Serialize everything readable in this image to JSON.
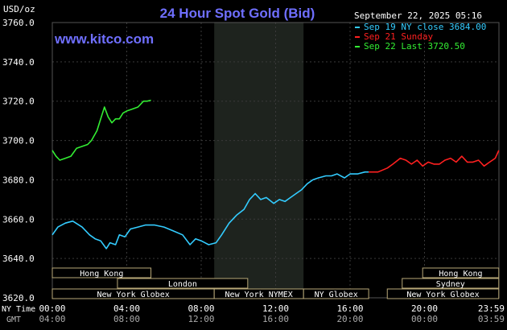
{
  "title": "24 Hour Spot Gold (Bid)",
  "unit_label": "USD/oz",
  "watermark": "www.kitco.com",
  "timestamp": "September 22, 2025 05:16",
  "legend": [
    {
      "label": "Sep 19 NY close 3684.00",
      "color": "#33ccff"
    },
    {
      "label": "Sep 21 Sunday",
      "color": "#ff2020"
    },
    {
      "label": "Sep 22 Last 3720.50",
      "color": "#33ee33"
    }
  ],
  "axis_labels": {
    "ny_time": "NY Time",
    "gmt": "GMT"
  },
  "x_ticks_ny": [
    "00:00",
    "04:00",
    "08:00",
    "12:00",
    "16:00",
    "20:00",
    "23:59"
  ],
  "x_ticks_gmt": [
    "04:00",
    "08:00",
    "12:00",
    "16:00",
    "20:00",
    "00:00",
    "03:59"
  ],
  "sessions_left": [
    {
      "label": "Hong Kong",
      "start_h": 0,
      "end_h": 5.3
    },
    {
      "label": "London",
      "start_h": 3.5,
      "end_h": 10.5
    },
    {
      "label": "New York Globex",
      "start_h": 0,
      "end_h": 8.7
    },
    {
      "label": "New York NYMEX",
      "start_h": 8.7,
      "end_h": 13.5
    },
    {
      "label": "NY Globex",
      "start_h": 13.5,
      "end_h": 17
    }
  ],
  "sessions_right": [
    {
      "label": "Hong Kong",
      "start_h": 19.9,
      "end_h": 23.99
    },
    {
      "label": "Sydney",
      "start_h": 18.8,
      "end_h": 23.99
    },
    {
      "label": "New York Globex",
      "start_h": 18,
      "end_h": 23.99
    }
  ],
  "chart_data": {
    "type": "line",
    "title": "24 Hour Spot Gold (Bid)",
    "ylabel": "USD/oz",
    "ylim": [
      3620,
      3760
    ],
    "y_ticks": [
      3620,
      3640,
      3660,
      3680,
      3700,
      3720,
      3740,
      3760
    ],
    "xlim_hours": [
      0,
      24
    ],
    "shaded_region_hours": [
      8.7,
      13.5
    ],
    "grid": true,
    "series": [
      {
        "name": "Sep 19 NY close 3684.00",
        "color": "#33ccff",
        "x_hours": [
          0,
          0.3,
          0.7,
          1.1,
          1.6,
          2.0,
          2.3,
          2.6,
          2.9,
          3.1,
          3.4,
          3.6,
          3.9,
          4.2,
          4.6,
          5.0,
          5.5,
          6.0,
          6.5,
          7.0,
          7.4,
          7.7,
          8.0,
          8.4,
          8.8,
          9.1,
          9.5,
          9.9,
          10.3,
          10.6,
          10.9,
          11.2,
          11.5,
          11.9,
          12.2,
          12.5,
          12.8,
          13.1,
          13.4,
          13.7,
          14.0,
          14.3,
          14.7,
          15.0,
          15.3,
          15.7,
          16.0,
          16.4,
          16.8,
          17.0
        ],
        "values": [
          3652,
          3656,
          3658,
          3659,
          3656,
          3652,
          3650,
          3649,
          3645,
          3648,
          3647,
          3652,
          3651,
          3655,
          3656,
          3657,
          3657,
          3656,
          3654,
          3652,
          3647,
          3650,
          3649,
          3647,
          3648,
          3652,
          3658,
          3662,
          3665,
          3670,
          3673,
          3670,
          3671,
          3668,
          3670,
          3669,
          3671,
          3673,
          3675,
          3678,
          3680,
          3681,
          3682,
          3682,
          3683,
          3681,
          3683,
          3683,
          3684,
          3684
        ]
      },
      {
        "name": "Sep 21 Sunday",
        "color": "#ff2020",
        "x_hours": [
          17.0,
          17.5,
          18.0,
          18.3,
          18.7,
          19.0,
          19.3,
          19.6,
          19.9,
          20.2,
          20.5,
          20.8,
          21.1,
          21.4,
          21.7,
          22.0,
          22.3,
          22.6,
          22.9,
          23.2,
          23.5,
          23.8,
          23.99
        ],
        "values": [
          3684,
          3684,
          3686,
          3688,
          3691,
          3690,
          3688,
          3690,
          3687,
          3689,
          3688,
          3688,
          3690,
          3691,
          3689,
          3692,
          3689,
          3689,
          3690,
          3687,
          3689,
          3691,
          3695
        ]
      },
      {
        "name": "Sep 22 Last 3720.50",
        "color": "#33ee33",
        "x_hours": [
          0,
          0.2,
          0.4,
          0.7,
          1.0,
          1.3,
          1.6,
          1.9,
          2.1,
          2.4,
          2.6,
          2.8,
          3.0,
          3.2,
          3.4,
          3.6,
          3.8,
          4.0,
          4.3,
          4.6,
          4.9,
          5.1,
          5.3
        ],
        "values": [
          3695,
          3692,
          3690,
          3691,
          3692,
          3696,
          3697,
          3698,
          3700,
          3705,
          3711,
          3717,
          3712,
          3709,
          3711,
          3711,
          3714,
          3715,
          3716,
          3717,
          3720,
          3720,
          3720.5
        ]
      }
    ]
  }
}
